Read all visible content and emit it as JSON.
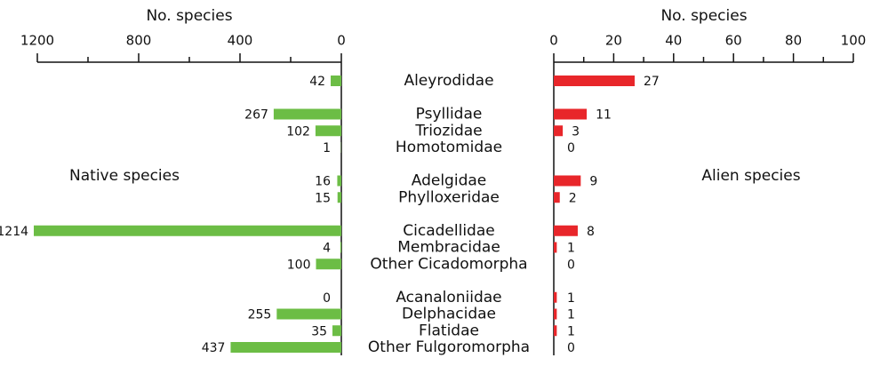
{
  "chart_data": {
    "type": "bar",
    "categories": [
      "Aleyrodidae",
      null,
      "Psyllidae",
      "Triozidae",
      "Homotomidae",
      null,
      "Adelgidae",
      "Phylloxeridae",
      null,
      "Cicadellidae",
      "Membracidae",
      "Other Cicadomorpha",
      null,
      "Acanaloniidae",
      "Delphacidae",
      "Flatidae",
      "Other Fulgoromorpha"
    ],
    "series": [
      {
        "name": "Native species",
        "color": "#6cbd45",
        "xlabel": "No. species",
        "xlim": [
          1200,
          0
        ],
        "xticks": [
          1200,
          800,
          400,
          0
        ],
        "xticks_minor": [
          1000,
          600,
          200
        ],
        "values": [
          42,
          null,
          267,
          102,
          1,
          null,
          16,
          15,
          null,
          1214,
          4,
          100,
          null,
          0,
          255,
          35,
          437
        ]
      },
      {
        "name": "Alien species",
        "color": "#e8262a",
        "xlabel": "No. species",
        "xlim": [
          0,
          100
        ],
        "xticks": [
          0,
          20,
          40,
          60,
          80,
          100
        ],
        "xticks_minor": [
          10,
          30,
          50,
          70,
          90
        ],
        "values": [
          27,
          null,
          11,
          3,
          0,
          null,
          9,
          2,
          null,
          8,
          1,
          0,
          null,
          1,
          1,
          1,
          0
        ]
      }
    ]
  }
}
